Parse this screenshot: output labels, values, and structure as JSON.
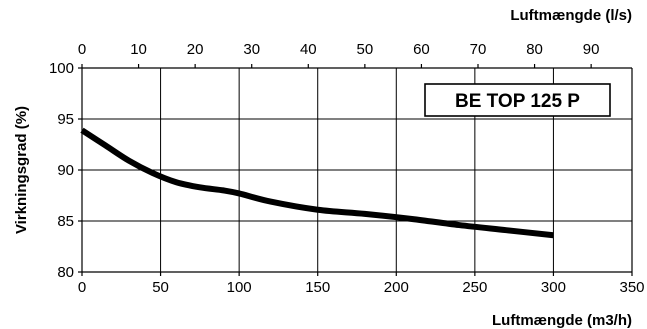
{
  "chart_data": {
    "type": "line",
    "title": "",
    "series_box_label": "BE TOP 125 P",
    "xlabel": "Luftmængde (m3/h)",
    "x2label": "Luftmængde (l/s)",
    "ylabel": "Virkningsgrad (%)",
    "xlim": [
      0,
      350
    ],
    "ylim": [
      80,
      100
    ],
    "x2lim": [
      0,
      97.2222
    ],
    "grid": true,
    "legend": "none",
    "x_ticks": [
      0,
      50,
      100,
      150,
      200,
      250,
      300,
      350
    ],
    "y_ticks": [
      80,
      85,
      90,
      95,
      100
    ],
    "x2_ticks": [
      0,
      10,
      20,
      30,
      40,
      50,
      60,
      70,
      80,
      90
    ],
    "colors": {
      "line": "#000000",
      "grid": "#000000",
      "background": "#ffffff"
    },
    "series": [
      {
        "x": [
          0,
          15,
          30,
          45,
          60,
          75,
          90,
          100,
          120,
          150,
          180,
          210,
          240,
          270,
          300
        ],
        "y": [
          93.9,
          92.4,
          90.9,
          89.7,
          88.8,
          88.3,
          88.0,
          87.7,
          86.9,
          86.1,
          85.7,
          85.2,
          84.6,
          84.1,
          83.6
        ]
      }
    ]
  }
}
